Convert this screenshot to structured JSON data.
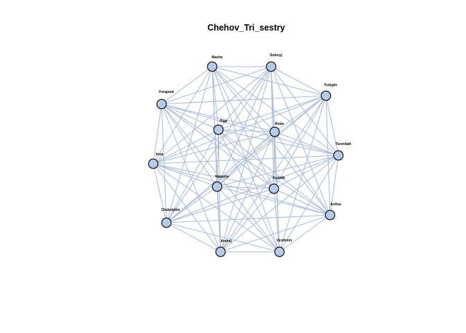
{
  "title": "Chehov_Tri_sestry",
  "colors": {
    "node_fill": "#b5cbe9",
    "node_stroke": "#000000",
    "edge": "#a9bcd8"
  },
  "nodes": [
    {
      "id": "masha",
      "label": "Masha"
    },
    {
      "id": "solenyj",
      "label": "Solenyj"
    },
    {
      "id": "kulygin",
      "label": "Kulygin"
    },
    {
      "id": "ferapont",
      "label": "Ferapont"
    },
    {
      "id": "olga",
      "label": "Olga"
    },
    {
      "id": "rode",
      "label": "Rode"
    },
    {
      "id": "tuzenbah",
      "label": "Tuzenbah"
    },
    {
      "id": "irina",
      "label": "Irina"
    },
    {
      "id": "natasha",
      "label": "Natasha"
    },
    {
      "id": "fedotik",
      "label": "Fedotik"
    },
    {
      "id": "anfisa",
      "label": "Anfisa"
    },
    {
      "id": "chebutykin",
      "label": "Chebutykin"
    },
    {
      "id": "andrej",
      "label": "Andrej"
    },
    {
      "id": "vershinin",
      "label": "Vershinin"
    }
  ],
  "edges": [
    [
      "masha",
      "solenyj"
    ],
    [
      "masha",
      "kulygin"
    ],
    [
      "masha",
      "ferapont"
    ],
    [
      "masha",
      "olga"
    ],
    [
      "masha",
      "rode"
    ],
    [
      "masha",
      "tuzenbah"
    ],
    [
      "masha",
      "irina"
    ],
    [
      "masha",
      "natasha"
    ],
    [
      "masha",
      "fedotik"
    ],
    [
      "masha",
      "anfisa"
    ],
    [
      "masha",
      "chebutykin"
    ],
    [
      "masha",
      "andrej"
    ],
    [
      "masha",
      "vershinin"
    ],
    [
      "solenyj",
      "kulygin"
    ],
    [
      "solenyj",
      "ferapont"
    ],
    [
      "solenyj",
      "olga"
    ],
    [
      "solenyj",
      "rode"
    ],
    [
      "solenyj",
      "tuzenbah"
    ],
    [
      "solenyj",
      "irina"
    ],
    [
      "solenyj",
      "natasha"
    ],
    [
      "solenyj",
      "fedotik"
    ],
    [
      "solenyj",
      "anfisa"
    ],
    [
      "solenyj",
      "chebutykin"
    ],
    [
      "solenyj",
      "andrej"
    ],
    [
      "solenyj",
      "vershinin"
    ],
    [
      "kulygin",
      "ferapont"
    ],
    [
      "kulygin",
      "olga"
    ],
    [
      "kulygin",
      "rode"
    ],
    [
      "kulygin",
      "tuzenbah"
    ],
    [
      "kulygin",
      "irina"
    ],
    [
      "kulygin",
      "natasha"
    ],
    [
      "kulygin",
      "fedotik"
    ],
    [
      "kulygin",
      "anfisa"
    ],
    [
      "kulygin",
      "chebutykin"
    ],
    [
      "kulygin",
      "andrej"
    ],
    [
      "kulygin",
      "vershinin"
    ],
    [
      "ferapont",
      "olga"
    ],
    [
      "ferapont",
      "rode"
    ],
    [
      "ferapont",
      "tuzenbah"
    ],
    [
      "ferapont",
      "irina"
    ],
    [
      "ferapont",
      "natasha"
    ],
    [
      "ferapont",
      "fedotik"
    ],
    [
      "ferapont",
      "anfisa"
    ],
    [
      "ferapont",
      "chebutykin"
    ],
    [
      "ferapont",
      "andrej"
    ],
    [
      "ferapont",
      "vershinin"
    ],
    [
      "olga",
      "rode"
    ],
    [
      "olga",
      "tuzenbah"
    ],
    [
      "olga",
      "irina"
    ],
    [
      "olga",
      "natasha"
    ],
    [
      "olga",
      "fedotik"
    ],
    [
      "olga",
      "anfisa"
    ],
    [
      "olga",
      "chebutykin"
    ],
    [
      "olga",
      "andrej"
    ],
    [
      "olga",
      "vershinin"
    ],
    [
      "rode",
      "tuzenbah"
    ],
    [
      "rode",
      "irina"
    ],
    [
      "rode",
      "natasha"
    ],
    [
      "rode",
      "fedotik"
    ],
    [
      "rode",
      "anfisa"
    ],
    [
      "rode",
      "chebutykin"
    ],
    [
      "rode",
      "andrej"
    ],
    [
      "rode",
      "vershinin"
    ],
    [
      "tuzenbah",
      "irina"
    ],
    [
      "tuzenbah",
      "natasha"
    ],
    [
      "tuzenbah",
      "fedotik"
    ],
    [
      "tuzenbah",
      "anfisa"
    ],
    [
      "tuzenbah",
      "chebutykin"
    ],
    [
      "tuzenbah",
      "andrej"
    ],
    [
      "tuzenbah",
      "vershinin"
    ],
    [
      "irina",
      "natasha"
    ],
    [
      "irina",
      "fedotik"
    ],
    [
      "irina",
      "anfisa"
    ],
    [
      "irina",
      "chebutykin"
    ],
    [
      "irina",
      "andrej"
    ],
    [
      "irina",
      "vershinin"
    ],
    [
      "natasha",
      "fedotik"
    ],
    [
      "natasha",
      "anfisa"
    ],
    [
      "natasha",
      "chebutykin"
    ],
    [
      "natasha",
      "andrej"
    ],
    [
      "natasha",
      "vershinin"
    ],
    [
      "fedotik",
      "anfisa"
    ],
    [
      "fedotik",
      "chebutykin"
    ],
    [
      "fedotik",
      "andrej"
    ],
    [
      "fedotik",
      "vershinin"
    ],
    [
      "anfisa",
      "chebutykin"
    ],
    [
      "anfisa",
      "andrej"
    ],
    [
      "anfisa",
      "vershinin"
    ],
    [
      "chebutykin",
      "andrej"
    ],
    [
      "chebutykin",
      "vershinin"
    ],
    [
      "andrej",
      "vershinin"
    ]
  ]
}
